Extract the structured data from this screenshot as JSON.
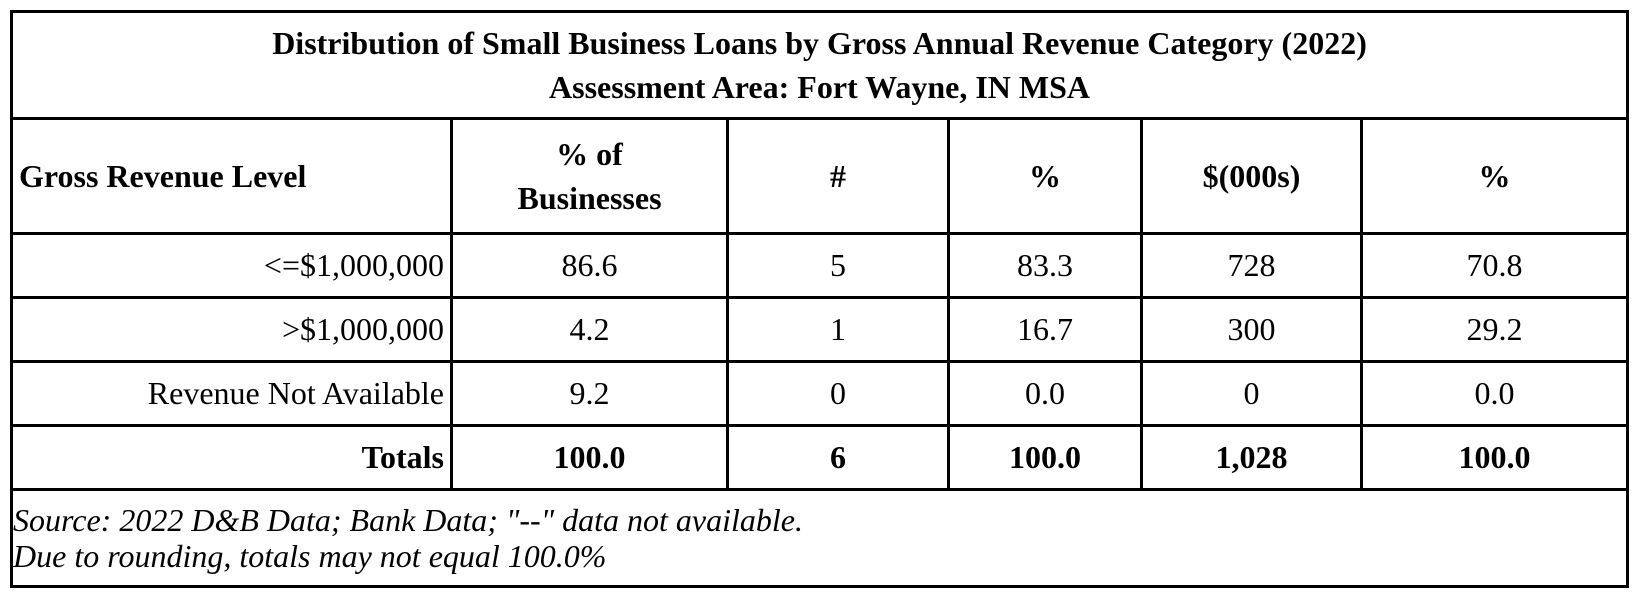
{
  "title": {
    "line1": "Distribution of Small Business Loans by Gross Annual Revenue Category (2022)",
    "line2": "Assessment Area: Fort Wayne, IN MSA"
  },
  "headers": {
    "col1": "Gross Revenue Level",
    "col2_line1": "% of",
    "col2_line2": "Businesses",
    "col3": "#",
    "col4": "%",
    "col5": "$(000s)",
    "col6": "%"
  },
  "rows": [
    {
      "label": "<=$1,000,000",
      "pct_businesses": "86.6",
      "count": "5",
      "pct_count": "83.3",
      "amount": "728",
      "pct_amount": "70.8"
    },
    {
      "label": ">$1,000,000",
      "pct_businesses": "4.2",
      "count": "1",
      "pct_count": "16.7",
      "amount": "300",
      "pct_amount": "29.2"
    },
    {
      "label": "Revenue Not Available",
      "pct_businesses": "9.2",
      "count": "0",
      "pct_count": "0.0",
      "amount": "0",
      "pct_amount": "0.0"
    }
  ],
  "totals": {
    "label": "Totals",
    "pct_businesses": "100.0",
    "count": "6",
    "pct_count": "100.0",
    "amount": "1,028",
    "pct_amount": "100.0"
  },
  "footer": {
    "line1": "Source: 2022 D&B Data; Bank Data; \"--\" data not available.",
    "line2": "Due to rounding, totals may not equal 100.0%"
  }
}
